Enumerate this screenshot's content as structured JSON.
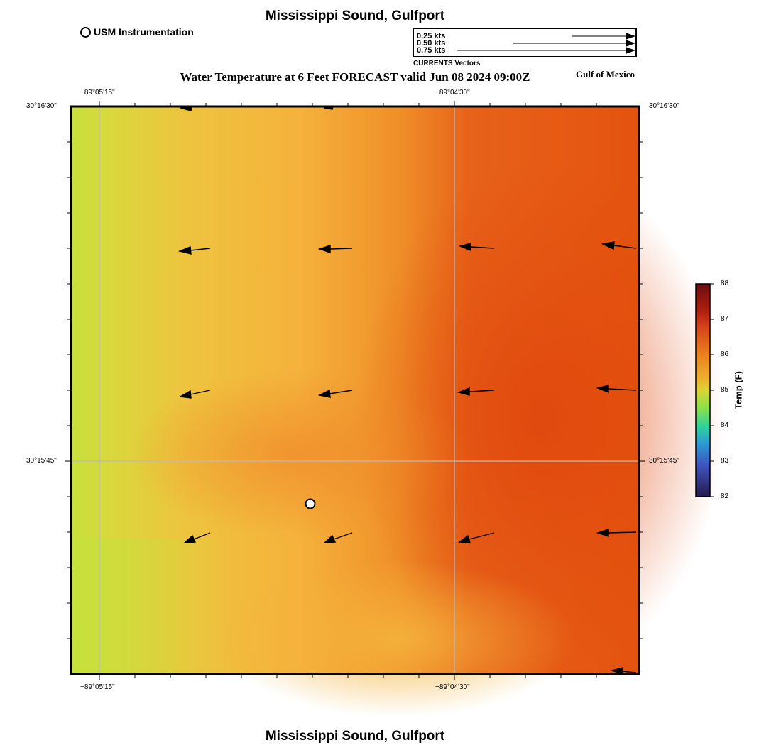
{
  "header": {
    "title": "Mississippi Sound, Gulfport",
    "footer_title": "Mississippi Sound, Gulfport",
    "subtitle": "Water Temperature at 6 Feet FORECAST valid Jun 08 2024 09:00Z",
    "region_label": "Gulf of Mexico"
  },
  "legend": {
    "instrument_label": "USM Instrumentation"
  },
  "vector_scale": {
    "labels": [
      "0.25 kts",
      "0.50 kts",
      "0.75 kts"
    ],
    "speeds_kts": [
      0.25,
      0.5,
      0.75
    ],
    "caption": "CURRENTS Vectors"
  },
  "map": {
    "lon_labels": [
      "−89°05'15\"",
      "−89°04'30\""
    ],
    "lat_labels": [
      "30°16'30\"",
      "30°15'45\""
    ],
    "gridline_color": "#bbbbbb",
    "station_marker": {
      "name": "USM Instrumentation station"
    }
  },
  "colorbar": {
    "title": "Temp (F)",
    "ticks": [
      "88",
      "87",
      "86",
      "85",
      "84",
      "83",
      "82"
    ],
    "range": [
      82,
      88
    ],
    "colors": [
      "#6b0d10",
      "#c83413",
      "#e9801e",
      "#e3c336",
      "#8fe04a",
      "#2fd39a",
      "#2c9ad4",
      "#3f55c0",
      "#251a4c"
    ]
  },
  "field_colors": {
    "cool": "#c6e03c",
    "mid": "#f3b23d",
    "warm": "#e4530f"
  }
}
